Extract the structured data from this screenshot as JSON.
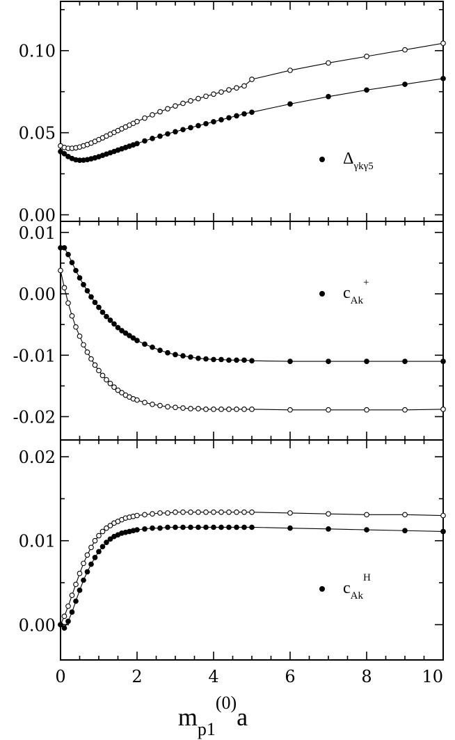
{
  "chart_data": {
    "type": "line",
    "x_axis": {
      "title": {
        "main": "m",
        "sub": "p1",
        "sup": "(0)",
        "tail": "a"
      },
      "xlim": [
        0,
        10
      ],
      "ticks": [
        "0",
        "2",
        "4",
        "6",
        "8",
        "10"
      ]
    },
    "panels": [
      {
        "ylim": [
          -0.004,
          0.13
        ],
        "yticks": [
          {
            "value": 0.0,
            "label": "0.00"
          },
          {
            "value": 0.05,
            "label": "0.05"
          },
          {
            "value": 0.1,
            "label": "0.10"
          }
        ],
        "legend": {
          "main": "Δ",
          "sub": "γkγ5",
          "sup": ""
        },
        "series": [
          {
            "marker": "open",
            "x": [
              0,
              0.1,
              0.2,
              0.3,
              0.4,
              0.5,
              0.6,
              0.7,
              0.8,
              0.9,
              1.0,
              1.1,
              1.2,
              1.3,
              1.4,
              1.5,
              1.6,
              1.7,
              1.8,
              1.9,
              2.0,
              2.2,
              2.4,
              2.6,
              2.8,
              3.0,
              3.2,
              3.4,
              3.6,
              3.8,
              4.0,
              4.2,
              4.4,
              4.6,
              4.8,
              5,
              6,
              7,
              8,
              9,
              10
            ],
            "y": [
              0.042,
              0.041,
              0.0405,
              0.0405,
              0.0408,
              0.0413,
              0.042,
              0.0428,
              0.0437,
              0.0447,
              0.0458,
              0.0469,
              0.048,
              0.0491,
              0.0502,
              0.0513,
              0.0524,
              0.0535,
              0.0546,
              0.0557,
              0.0568,
              0.0589,
              0.0609,
              0.0628,
              0.0646,
              0.0663,
              0.0679,
              0.0694,
              0.0708,
              0.0722,
              0.0735,
              0.0748,
              0.0761,
              0.0773,
              0.0785,
              0.0825,
              0.088,
              0.0925,
              0.0965,
              0.1005,
              0.1045
            ]
          },
          {
            "marker": "filled",
            "x": [
              0,
              0.1,
              0.2,
              0.3,
              0.4,
              0.5,
              0.6,
              0.7,
              0.8,
              0.9,
              1.0,
              1.1,
              1.2,
              1.3,
              1.4,
              1.5,
              1.6,
              1.7,
              1.8,
              1.9,
              2.0,
              2.2,
              2.4,
              2.6,
              2.8,
              3.0,
              3.2,
              3.4,
              3.6,
              3.8,
              4.0,
              4.2,
              4.4,
              4.6,
              4.8,
              5,
              6,
              7,
              8,
              9,
              10
            ],
            "y": [
              0.0385,
              0.0372,
              0.0355,
              0.0343,
              0.0335,
              0.0332,
              0.0333,
              0.0336,
              0.0341,
              0.0347,
              0.0354,
              0.0362,
              0.037,
              0.0378,
              0.0386,
              0.0394,
              0.0402,
              0.041,
              0.0418,
              0.0426,
              0.0434,
              0.045,
              0.0465,
              0.0479,
              0.0493,
              0.0506,
              0.0519,
              0.0531,
              0.0543,
              0.0555,
              0.0567,
              0.0579,
              0.0591,
              0.0603,
              0.0615,
              0.0625,
              0.0675,
              0.072,
              0.076,
              0.0795,
              0.083
            ]
          }
        ]
      },
      {
        "ylim": [
          -0.0238,
          0.0118
        ],
        "yticks": [
          {
            "value": -0.02,
            "label": "-0.02"
          },
          {
            "value": -0.01,
            "label": "-0.01"
          },
          {
            "value": 0.0,
            "label": "0.00"
          },
          {
            "value": 0.01,
            "label": "0.01"
          }
        ],
        "legend": {
          "main": "c",
          "sub": "Ak",
          "sup": "+"
        },
        "series": [
          {
            "marker": "filled",
            "x": [
              0,
              0.1,
              0.2,
              0.3,
              0.4,
              0.5,
              0.6,
              0.7,
              0.8,
              0.9,
              1.0,
              1.1,
              1.2,
              1.3,
              1.4,
              1.5,
              1.6,
              1.7,
              1.8,
              1.9,
              2.0,
              2.2,
              2.4,
              2.6,
              2.8,
              3.0,
              3.2,
              3.4,
              3.6,
              3.8,
              4.0,
              4.2,
              4.4,
              4.6,
              4.8,
              5,
              6,
              7,
              8,
              9,
              10
            ],
            "y": [
              0.0075,
              0.0075,
              0.0064,
              0.0051,
              0.0038,
              0.0026,
              0.0015,
              0.0005,
              -0.0005,
              -0.0014,
              -0.0022,
              -0.003,
              -0.0037,
              -0.0043,
              -0.0049,
              -0.0055,
              -0.006,
              -0.0064,
              -0.0068,
              -0.0072,
              -0.0076,
              -0.0082,
              -0.0087,
              -0.0092,
              -0.0096,
              -0.0099,
              -0.0101,
              -0.0103,
              -0.0105,
              -0.0106,
              -0.0107,
              -0.0107,
              -0.0108,
              -0.0108,
              -0.0108,
              -0.0109,
              -0.011,
              -0.011,
              -0.011,
              -0.011,
              -0.011
            ]
          },
          {
            "marker": "open",
            "x": [
              0,
              0.1,
              0.2,
              0.3,
              0.4,
              0.5,
              0.6,
              0.7,
              0.8,
              0.9,
              1.0,
              1.1,
              1.2,
              1.3,
              1.4,
              1.5,
              1.6,
              1.7,
              1.8,
              1.9,
              2.0,
              2.2,
              2.4,
              2.6,
              2.8,
              3.0,
              3.2,
              3.4,
              3.6,
              3.8,
              4.0,
              4.2,
              4.4,
              4.6,
              4.8,
              5,
              6,
              7,
              8,
              9,
              10
            ],
            "y": [
              0.0038,
              0.001,
              -0.0015,
              -0.0036,
              -0.0054,
              -0.0069,
              -0.0083,
              -0.0095,
              -0.0106,
              -0.0116,
              -0.0125,
              -0.0133,
              -0.014,
              -0.0146,
              -0.0152,
              -0.0157,
              -0.0161,
              -0.0165,
              -0.0168,
              -0.0171,
              -0.0173,
              -0.0177,
              -0.018,
              -0.0182,
              -0.0184,
              -0.0185,
              -0.0186,
              -0.0187,
              -0.0187,
              -0.0188,
              -0.0188,
              -0.0188,
              -0.0188,
              -0.0188,
              -0.0188,
              -0.0188,
              -0.0189,
              -0.0189,
              -0.0189,
              -0.0189,
              -0.0188
            ]
          }
        ]
      },
      {
        "ylim": [
          -0.0042,
          0.022
        ],
        "yticks": [
          {
            "value": 0.0,
            "label": "0.00"
          },
          {
            "value": 0.01,
            "label": "0.01"
          },
          {
            "value": 0.02,
            "label": "0.02"
          }
        ],
        "legend": {
          "main": "c",
          "sub": "Ak",
          "sup": "H"
        },
        "series": [
          {
            "marker": "open",
            "x": [
              0,
              0.1,
              0.2,
              0.3,
              0.4,
              0.5,
              0.6,
              0.7,
              0.8,
              0.9,
              1.0,
              1.1,
              1.2,
              1.3,
              1.4,
              1.5,
              1.6,
              1.7,
              1.8,
              1.9,
              2.0,
              2.2,
              2.4,
              2.6,
              2.8,
              3.0,
              3.2,
              3.4,
              3.6,
              3.8,
              4.0,
              4.2,
              4.4,
              4.6,
              4.8,
              5,
              6,
              7,
              8,
              9,
              10
            ],
            "y": [
              0.0,
              0.001,
              0.0022,
              0.0035,
              0.0048,
              0.0061,
              0.0073,
              0.0083,
              0.0092,
              0.01,
              0.0106,
              0.0111,
              0.0115,
              0.0118,
              0.0121,
              0.0123,
              0.0125,
              0.0127,
              0.0128,
              0.0129,
              0.013,
              0.0131,
              0.0132,
              0.0133,
              0.0133,
              0.0134,
              0.0134,
              0.0134,
              0.0134,
              0.0134,
              0.0134,
              0.0134,
              0.0134,
              0.0134,
              0.0134,
              0.0134,
              0.0133,
              0.0132,
              0.0131,
              0.0131,
              0.013
            ]
          },
          {
            "marker": "filled",
            "x": [
              0,
              0.1,
              0.2,
              0.3,
              0.4,
              0.5,
              0.6,
              0.7,
              0.8,
              0.9,
              1.0,
              1.1,
              1.2,
              1.3,
              1.4,
              1.5,
              1.6,
              1.7,
              1.8,
              1.9,
              2.0,
              2.2,
              2.4,
              2.6,
              2.8,
              3.0,
              3.2,
              3.4,
              3.6,
              3.8,
              4.0,
              4.2,
              4.4,
              4.6,
              4.8,
              5,
              6,
              7,
              8,
              9,
              10
            ],
            "y": [
              0.0,
              -0.0004,
              0.0004,
              0.0015,
              0.0028,
              0.0041,
              0.0053,
              0.0063,
              0.0072,
              0.008,
              0.0087,
              0.0093,
              0.0098,
              0.0102,
              0.0105,
              0.0107,
              0.0109,
              0.011,
              0.0111,
              0.0112,
              0.0113,
              0.0114,
              0.0115,
              0.0115,
              0.0116,
              0.0116,
              0.0116,
              0.0116,
              0.0116,
              0.0116,
              0.0116,
              0.0116,
              0.0116,
              0.0116,
              0.0116,
              0.0116,
              0.0115,
              0.0114,
              0.0113,
              0.0112,
              0.0111
            ]
          }
        ]
      }
    ]
  }
}
